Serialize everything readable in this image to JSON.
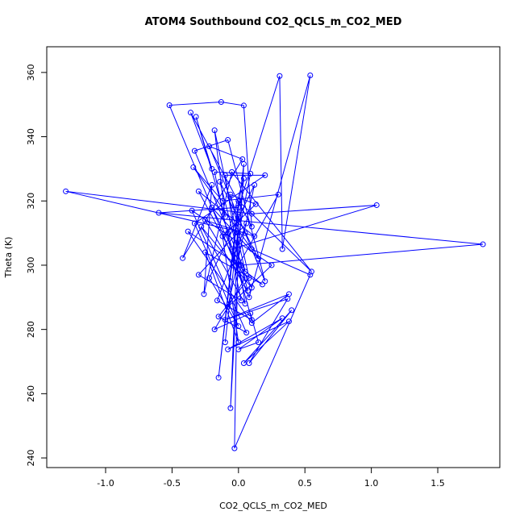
{
  "chart_data": {
    "type": "line",
    "title": "ATOM4 Southbound CO2_QCLS_m_CO2_MED",
    "x_label": "CO2_QCLS_m_CO2_MED",
    "y_label": "Theta (K)",
    "xlim": [
      -1.443,
      1.967
    ],
    "ylim": [
      237.0,
      368.0
    ],
    "xticks": [
      {
        "value": -1,
        "label": "-1.0"
      },
      -0.5,
      {
        "value": 0,
        "label": "0.0"
      },
      0.5,
      {
        "value": 1,
        "label": "1.0"
      },
      1.5
    ],
    "yticks": [
      240,
      260,
      280,
      300,
      320,
      340,
      360
    ],
    "markers": true,
    "series": [
      {
        "color": "#0000ff",
        "x": [
          0.05,
          -1.3,
          0.1,
          1.04,
          -0.05,
          0.02,
          1.84,
          -0.6,
          0.0,
          0.31,
          0.33,
          0.54,
          0.08,
          -0.52,
          -0.13,
          0.04,
          0.1,
          -0.36,
          -0.2,
          -0.32,
          -0.1,
          -0.18,
          0.05,
          -0.33,
          -0.08,
          0.2,
          -0.22,
          0.03,
          -0.42,
          -0.2,
          -0.26,
          -0.05,
          0.55,
          0.0,
          -0.15,
          0.04,
          -0.06,
          0.0,
          -0.03,
          0.54,
          0.1,
          -0.34,
          -0.12,
          0.3,
          0.0,
          -0.38,
          0.1,
          0.38,
          -0.1,
          0.37,
          0.08,
          0.4,
          0.04,
          0.38,
          -0.08,
          0.33,
          0.0,
          0.15,
          0.09,
          -0.18,
          0.05,
          -0.3,
          0.12,
          -0.25,
          0.07,
          -0.14,
          0.15,
          -0.2,
          0.1,
          -0.28,
          0.05,
          -0.1,
          0.2,
          -0.33,
          0.0,
          -0.22,
          0.12,
          -0.08,
          0.25,
          -0.35,
          0.06,
          -0.15,
          0.08,
          -0.06,
          0.13,
          -0.12,
          0.0,
          -0.25,
          0.18,
          -0.04,
          0.09,
          -0.18,
          0.02,
          -0.3,
          0.06,
          -0.16,
          0.1,
          -0.08,
          0.04,
          -0.1
        ],
        "values": [
          310,
          323,
          316,
          318.7,
          305,
          300,
          306.5,
          316.3,
          318,
          358.9,
          305,
          359.1,
          290,
          349.8,
          350.8,
          349.7,
          312,
          347.5,
          330,
          346.2,
          315,
          342,
          298,
          335.6,
          339,
          295,
          337,
          333,
          302.2,
          325,
          291,
          329,
          298,
          320,
          265,
          331.5,
          255.5,
          315,
          243,
          297,
          305,
          330.5,
          320,
          322,
          300,
          310.5,
          282,
          291,
          283,
          289.5,
          269.5,
          286,
          269.5,
          282.5,
          273.8,
          283.5,
          273.8,
          276,
          285,
          280,
          296,
          323,
          309,
          314,
          292,
          326,
          302,
          318,
          293,
          312,
          288,
          328,
          328,
          313,
          281,
          296,
          325,
          287,
          300,
          317,
          279,
          284,
          296,
          322,
          319,
          309,
          276,
          304,
          294,
          301,
          328.5,
          329,
          289,
          297,
          313,
          289,
          283,
          310,
          327,
          276
        ]
      }
    ]
  }
}
